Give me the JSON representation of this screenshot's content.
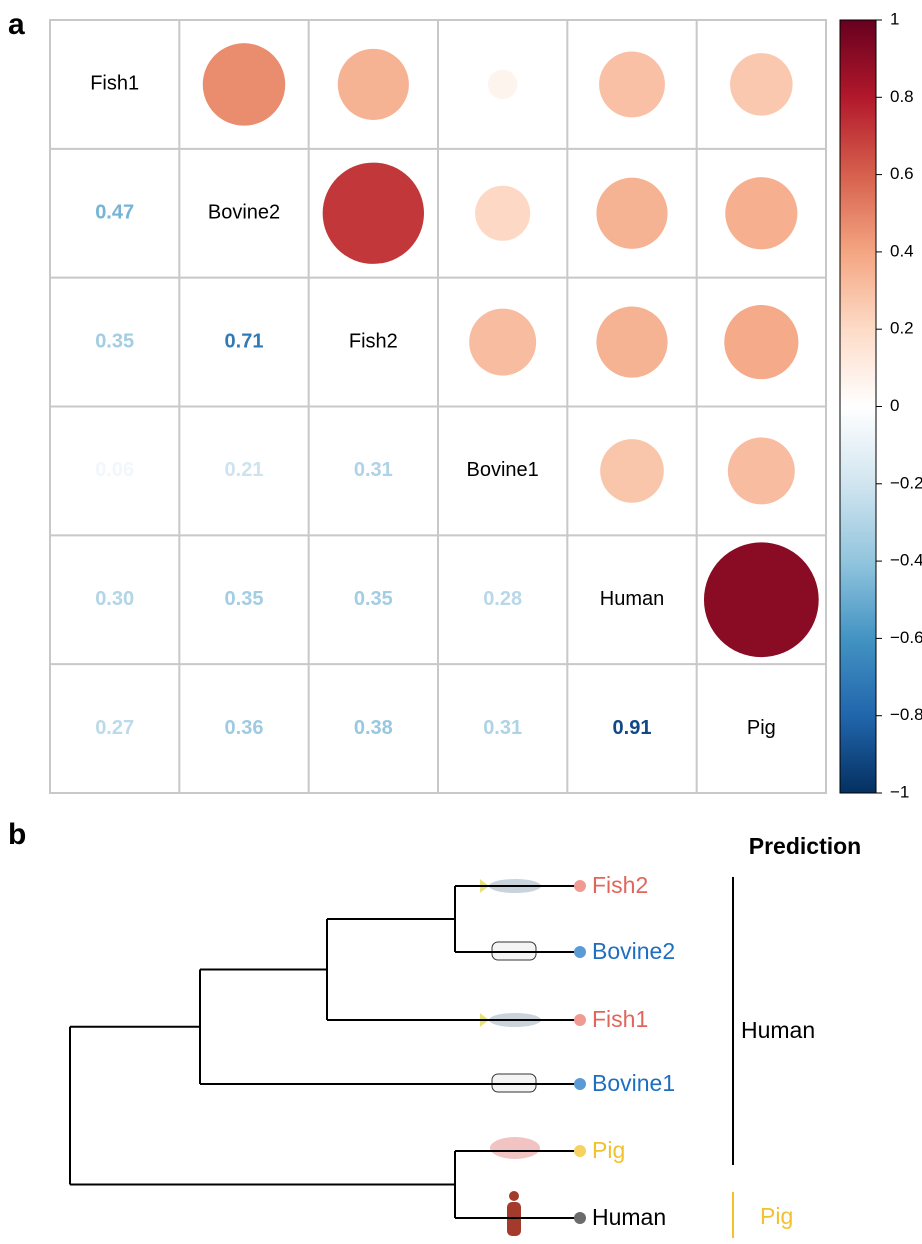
{
  "figure": {
    "panel_labels": [
      "a",
      "b"
    ]
  },
  "chart_data": [
    {
      "type": "corrplot",
      "labels": [
        "Fish1",
        "Bovine2",
        "Fish2",
        "Bovine1",
        "Human",
        "Pig"
      ],
      "values": [
        [],
        [
          0.47
        ],
        [
          0.35,
          0.71
        ],
        [
          0.06,
          0.21,
          0.31
        ],
        [
          0.3,
          0.35,
          0.35,
          0.28
        ],
        [
          0.27,
          0.36,
          0.38,
          0.31,
          0.91
        ]
      ],
      "value_labels": [
        [],
        [
          "0.47"
        ],
        [
          "0.35",
          "0.71"
        ],
        [
          "0.06",
          "0.21",
          "0.31"
        ],
        [
          "0.30",
          "0.35",
          "0.35",
          "0.28"
        ],
        [
          "0.27",
          "0.36",
          "0.38",
          "0.31",
          "0.91"
        ]
      ],
      "colormap": [
        "#053061",
        "#2166ac",
        "#4393c3",
        "#92c5de",
        "#d1e5f0",
        "#ffffff",
        "#fddbc7",
        "#f4a582",
        "#d6604d",
        "#b2182b",
        "#67001f"
      ],
      "ylim": [
        -1,
        1
      ],
      "yticks": [
        {
          "value": -1,
          "label": "−1"
        },
        {
          "value": -0.8,
          "label": "−0.8"
        },
        {
          "value": -0.6,
          "label": "−0.6"
        },
        {
          "value": -0.4,
          "label": "−0.4"
        },
        {
          "value": -0.2,
          "label": "−0.2"
        },
        0,
        0.2,
        0.4,
        0.6,
        0.8,
        1
      ]
    },
    {
      "type": "dendrogram",
      "title": "Prediction",
      "leaves": [
        {
          "label": "Fish2",
          "color": "#e0665c",
          "dot_color": "#ef9b92"
        },
        {
          "label": "Bovine2",
          "color": "#1f6fbf",
          "dot_color": "#5b9bd5"
        },
        {
          "label": "Fish1",
          "color": "#e0665c",
          "dot_color": "#ef9b92"
        },
        {
          "label": "Bovine1",
          "color": "#1f6fbf",
          "dot_color": "#5b9bd5"
        },
        {
          "label": "Pig",
          "color": "#f2c12e",
          "dot_color": "#f7d25e"
        },
        {
          "label": "Human",
          "color": "#000000",
          "dot_color": "#6b6b6b"
        }
      ],
      "groups": [
        {
          "label": "Human",
          "color": "#000000"
        },
        {
          "label": "Pig",
          "color": "#f2c12e"
        }
      ]
    }
  ]
}
